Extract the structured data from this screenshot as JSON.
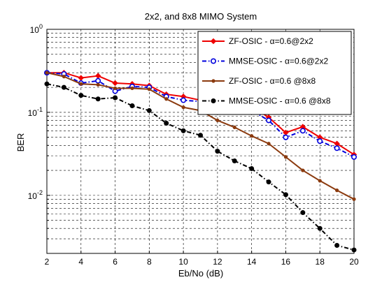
{
  "chart_data": {
    "type": "line",
    "title": "2x2, and 8x8  MIMO System",
    "xlabel": "Eb/No (dB)",
    "ylabel": "BER",
    "x_ticks": [
      "2",
      "4",
      "6",
      "8",
      "10",
      "12",
      "14",
      "16",
      "18",
      "20"
    ],
    "y_ticks": [
      {
        "base": "10",
        "exp": "0"
      },
      {
        "base": "10",
        "exp": "-1"
      },
      {
        "base": "10",
        "exp": "-2"
      }
    ],
    "xlim": [
      2,
      20
    ],
    "ylim": [
      0.002,
      1
    ],
    "y_scale": "log",
    "grid": true,
    "legend_location": "top-right",
    "x": [
      2,
      3,
      4,
      5,
      6,
      7,
      8,
      9,
      10,
      11,
      12,
      13,
      14,
      15,
      16,
      17,
      18,
      19,
      20
    ],
    "series": [
      {
        "name": "ZF-OSIC - α=0.6@2x2",
        "color": "#ee0000",
        "line_style": "solid",
        "marker": "diamond-filled",
        "values": [
          0.3,
          0.3,
          0.26,
          0.275,
          0.225,
          0.22,
          0.21,
          0.165,
          0.155,
          0.14,
          0.138,
          0.118,
          0.117,
          0.087,
          0.057,
          0.067,
          0.05,
          0.042,
          0.031
        ]
      },
      {
        "name": "MMSE-OSIC - α=0.6@2x2",
        "color": "#0000dd",
        "line_style": "dashdot",
        "marker": "circle-open",
        "values": [
          0.3,
          0.29,
          0.225,
          0.24,
          0.18,
          0.205,
          0.2,
          0.155,
          0.14,
          0.135,
          0.12,
          0.11,
          0.105,
          0.08,
          0.05,
          0.06,
          0.045,
          0.037,
          0.029
        ]
      },
      {
        "name": "ZF-OSIC - α=0.6 @8x8",
        "color": "#8b3a0e",
        "line_style": "solid",
        "marker": "dot",
        "values": [
          0.3,
          0.27,
          0.22,
          0.215,
          0.195,
          0.195,
          0.19,
          0.145,
          0.115,
          0.105,
          0.08,
          0.066,
          0.052,
          0.042,
          0.029,
          0.02,
          0.015,
          0.0115,
          0.009
        ]
      },
      {
        "name": "MMSE-OSIC - α=0.6 @8x8",
        "color": "#000000",
        "line_style": "dashdot",
        "marker": "circle-filled",
        "values": [
          0.22,
          0.2,
          0.16,
          0.145,
          0.15,
          0.12,
          0.105,
          0.074,
          0.06,
          0.053,
          0.034,
          0.026,
          0.021,
          0.0145,
          0.0102,
          0.0062,
          0.004,
          0.0025,
          0.0022
        ]
      }
    ]
  }
}
